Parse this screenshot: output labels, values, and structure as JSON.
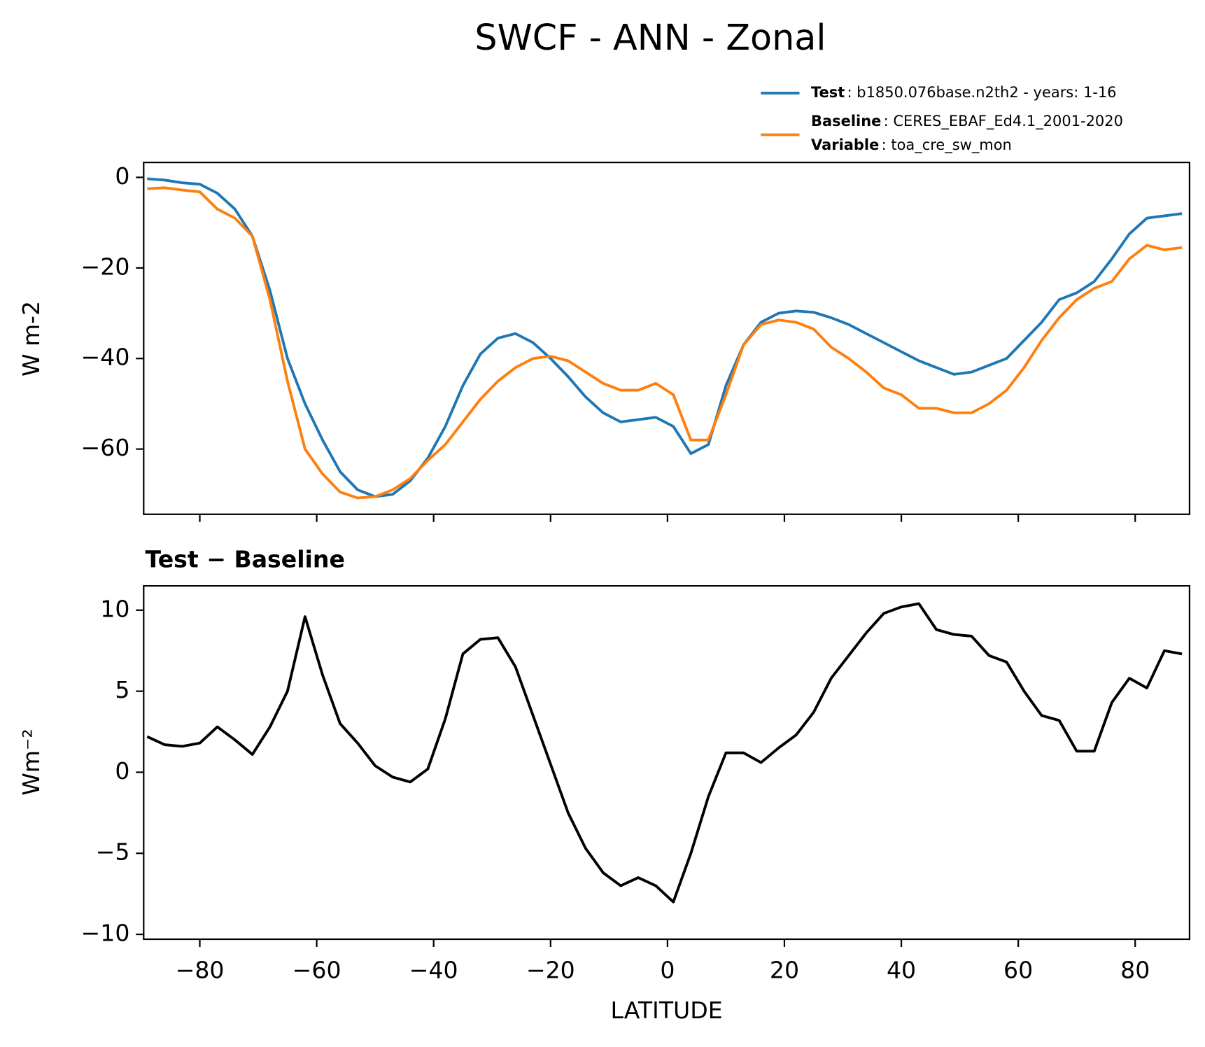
{
  "title": "SWCF - ANN - Zonal",
  "chart_data": [
    {
      "type": "line",
      "ylabel": "W m-2",
      "x": [
        -89,
        -86,
        -83,
        -80,
        -77,
        -74,
        -71,
        -68,
        -65,
        -62,
        -59,
        -56,
        -53,
        -50,
        -47,
        -44,
        -41,
        -38,
        -35,
        -32,
        -29,
        -26,
        -23,
        -20,
        -17,
        -14,
        -11,
        -8,
        -5,
        -2,
        1,
        4,
        7,
        10,
        13,
        16,
        19,
        22,
        25,
        28,
        31,
        34,
        37,
        40,
        43,
        46,
        49,
        52,
        55,
        58,
        61,
        64,
        67,
        70,
        73,
        76,
        79,
        82,
        85,
        88
      ],
      "series": [
        {
          "name": "Test",
          "legend_text": ": b1850.076base.n2th2 - years: 1-16",
          "color": "#1f77b4",
          "values": [
            -0.3,
            -0.6,
            -1.2,
            -1.5,
            -3.5,
            -7,
            -13,
            -25,
            -40,
            -50,
            -58,
            -65,
            -69,
            -70.5,
            -70,
            -67,
            -62,
            -55,
            -46,
            -39,
            -35.5,
            -34.5,
            -36.5,
            -40,
            -44,
            -48.5,
            -52,
            -54,
            -53.5,
            -53,
            -55,
            -61,
            -59,
            -46,
            -37,
            -32,
            -30,
            -29.5,
            -29.8,
            -31,
            -32.5,
            -34.5,
            -36.5,
            -38.5,
            -40.5,
            -42,
            -43.5,
            -43,
            -41.5,
            -40,
            -36,
            -32,
            -27,
            -25.5,
            -23,
            -18,
            -12.5,
            -9,
            -8.5,
            -8
          ]
        },
        {
          "name": "Baseline",
          "legend_text": ": CERES_EBAF_Ed4.1_2001-2020",
          "color": "#ff7f0e",
          "values": [
            -2.5,
            -2.3,
            -2.8,
            -3.2,
            -7,
            -9,
            -13,
            -27,
            -45,
            -60,
            -65.5,
            -69.5,
            -70.8,
            -70.5,
            -69,
            -66.5,
            -62.5,
            -59,
            -54,
            -49,
            -45,
            -42,
            -40,
            -39.5,
            -40.5,
            -43,
            -45.5,
            -47,
            -47,
            -45.5,
            -48,
            -58,
            -58,
            -48,
            -37,
            -32.5,
            -31.5,
            -32,
            -33.5,
            -37.5,
            -40,
            -43,
            -46.5,
            -48,
            -51,
            -51,
            -52,
            -52,
            -50,
            -47,
            -42,
            -36,
            -31,
            -27,
            -24.5,
            -23,
            -18,
            -15,
            -16,
            -15.5
          ]
        }
      ],
      "legend_note": {
        "name": "Variable",
        "text": ": toa_cre_sw_mon"
      },
      "xlim": [
        -89.6,
        89.3
      ],
      "xticks": [
        -80,
        -60,
        -40,
        -20,
        0,
        20,
        40,
        60,
        80
      ],
      "ylim": [
        -74.4,
        3.3
      ],
      "yticks": [
        0,
        {
          "value": -20,
          "label": "−20"
        },
        {
          "value": -40,
          "label": "−40"
        },
        {
          "value": -60,
          "label": "−60"
        }
      ]
    },
    {
      "type": "line",
      "title": "Test − Baseline",
      "ylabel": "Wm⁻²",
      "xlabel": "LATITUDE",
      "x": [
        -89,
        -86,
        -83,
        -80,
        -77,
        -74,
        -71,
        -68,
        -65,
        -62,
        -59,
        -56,
        -53,
        -50,
        -47,
        -44,
        -41,
        -38,
        -35,
        -32,
        -29,
        -26,
        -23,
        -20,
        -17,
        -14,
        -11,
        -8,
        -5,
        -2,
        1,
        4,
        7,
        10,
        13,
        16,
        19,
        22,
        25,
        28,
        31,
        34,
        37,
        40,
        43,
        46,
        49,
        52,
        55,
        58,
        61,
        64,
        67,
        70,
        73,
        76,
        79,
        82,
        85,
        88
      ],
      "color": "#000000",
      "values": [
        2.2,
        1.7,
        1.6,
        1.8,
        2.8,
        2.0,
        1.1,
        2.8,
        5,
        9.6,
        6,
        3,
        1.8,
        0.4,
        -0.3,
        -0.6,
        0.2,
        3.3,
        7.3,
        8.2,
        8.3,
        6.5,
        3.5,
        0.5,
        -2.5,
        -4.7,
        -6.2,
        -7,
        -6.5,
        -7,
        -8,
        -5,
        -1.5,
        1.2,
        1.2,
        0.6,
        1.5,
        2.3,
        3.7,
        5.8,
        7.2,
        8.6,
        9.8,
        10.2,
        10.4,
        8.8,
        8.5,
        8.4,
        7.2,
        6.8,
        5,
        3.5,
        3.2,
        1.3,
        1.3,
        4.3,
        5.8,
        5.2,
        7.5,
        7.3
      ],
      "xlim": [
        -89.6,
        89.3
      ],
      "xticks": [
        {
          "value": -80,
          "label": "−80"
        },
        {
          "value": -60,
          "label": "−60"
        },
        {
          "value": -40,
          "label": "−40"
        },
        {
          "value": -20,
          "label": "−20"
        },
        0,
        20,
        40,
        60,
        80
      ],
      "ylim": [
        -10.3,
        11.5
      ],
      "yticks": [
        10,
        5,
        0,
        {
          "value": -5,
          "label": "−5"
        },
        {
          "value": -10,
          "label": "−10"
        }
      ]
    }
  ]
}
